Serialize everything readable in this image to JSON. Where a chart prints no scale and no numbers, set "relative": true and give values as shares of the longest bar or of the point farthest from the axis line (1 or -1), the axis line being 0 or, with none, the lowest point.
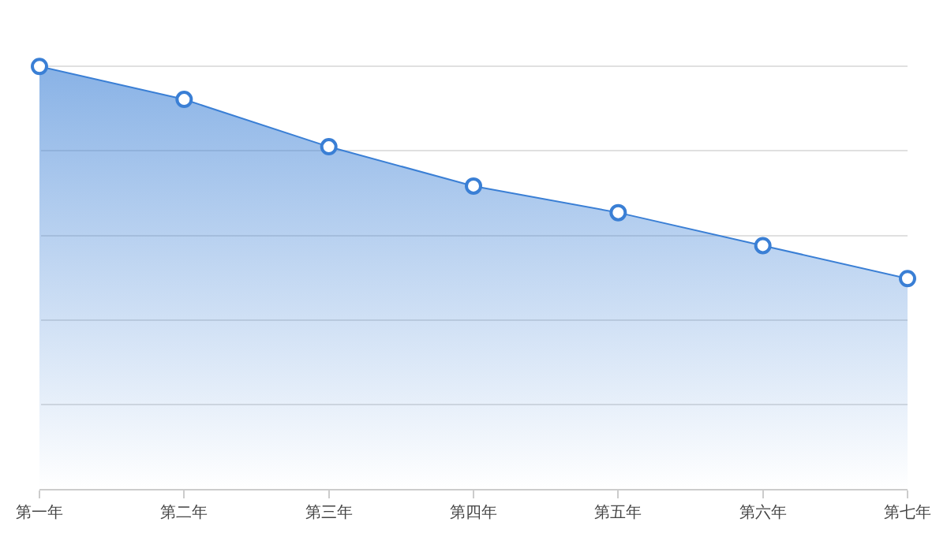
{
  "chart_data": {
    "type": "area",
    "relative": true,
    "categories": [
      "第一年",
      "第二年",
      "第三年",
      "第四年",
      "第五年",
      "第六年",
      "第七年"
    ],
    "series": [
      {
        "color": "#3a7fd5",
        "values": [
          1,
          0.922,
          0.81,
          0.717,
          0.654,
          0.576,
          0.498
        ]
      }
    ],
    "grid": "y",
    "marker": "circle",
    "line_style": "solid",
    "legend": false
  }
}
